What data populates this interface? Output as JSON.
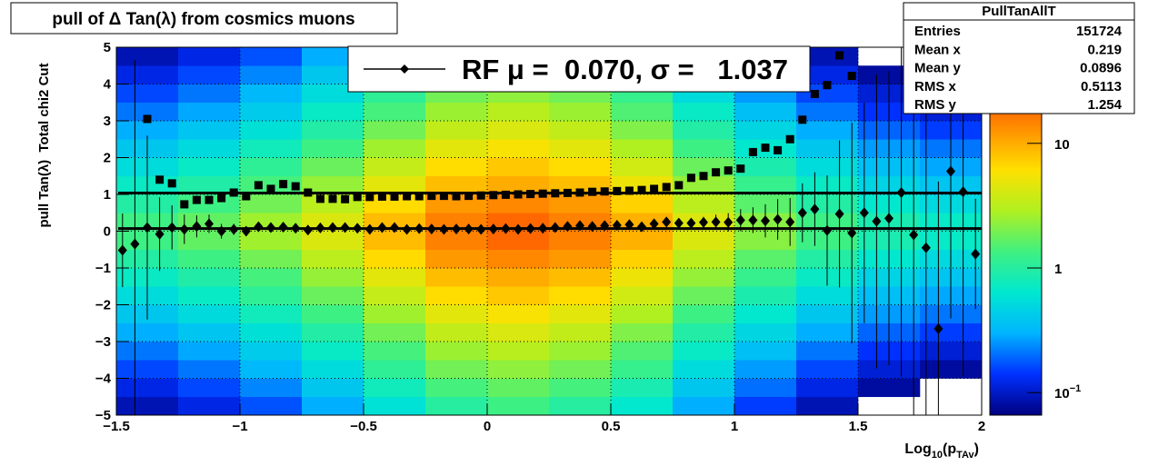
{
  "chart_data": {
    "type": "heatmap",
    "title": "pull of Δ Tan(λ) from cosmics muons",
    "xlabel": [
      "Log",
      "10",
      "(p",
      "TAv",
      ")"
    ],
    "ylabel": "pull Tan(λ)  Total chi2 Cut",
    "xlim": [
      -1.5,
      2
    ],
    "ylim": [
      -5,
      5
    ],
    "xticks": [
      {
        "value": -1.5,
        "label": "−1.5"
      },
      {
        "value": -1,
        "label": "−1"
      },
      {
        "value": -0.5,
        "label": "−0.5"
      },
      0,
      0.5,
      1,
      1.5,
      2
    ],
    "yticks": [
      {
        "value": -5,
        "label": "−5"
      },
      {
        "value": -4,
        "label": "−4"
      },
      {
        "value": -3,
        "label": "−3"
      },
      {
        "value": -2,
        "label": "−2"
      },
      {
        "value": -1,
        "label": "−1"
      },
      0,
      1,
      2,
      3,
      4,
      5
    ],
    "grid": true,
    "zlim": [
      0.066,
      59
    ],
    "zscale": "log",
    "zticks": [
      {
        "value": 0.1,
        "label": "10",
        "exponent": "−1"
      },
      1,
      10
    ],
    "palette": [
      "#000080",
      "#0030ff",
      "#00b4ff",
      "#00e8d0",
      "#40f080",
      "#b0f020",
      "#ffe000",
      "#ff9000",
      "#ff4000",
      "#c00000"
    ],
    "heatmap": {
      "xbins": [
        -1.5,
        -1.25,
        -1,
        -0.75,
        -0.5,
        -0.25,
        0,
        0.25,
        0.5,
        0.75,
        1,
        1.25,
        1.5,
        1.75,
        2
      ],
      "ybins": [
        -5,
        -4.5,
        -4,
        -3.5,
        -3,
        -2.5,
        -2,
        -1.5,
        -1,
        -0.5,
        0,
        0.5,
        1,
        1.5,
        2,
        2.5,
        3,
        3.5,
        4,
        4.5,
        5
      ],
      "z": [
        [
          0.09,
          0.12,
          0.17,
          0.29,
          0.58,
          1.0,
          1.3,
          1.0,
          0.64,
          0.29,
          0.15,
          0.09,
          0.06,
          0.05
        ],
        [
          0.12,
          0.16,
          0.23,
          0.39,
          0.78,
          1.4,
          1.7,
          1.4,
          0.86,
          0.39,
          0.2,
          0.12,
          0.08,
          0.06
        ],
        [
          0.16,
          0.21,
          0.32,
          0.53,
          1.1,
          1.9,
          2.3,
          1.9,
          1.2,
          0.53,
          0.26,
          0.16,
          0.11,
          0.08
        ],
        [
          0.21,
          0.28,
          0.42,
          0.7,
          1.4,
          2.5,
          3.1,
          2.5,
          1.5,
          0.7,
          0.35,
          0.21,
          0.14,
          0.11
        ],
        [
          0.29,
          0.38,
          0.57,
          0.95,
          1.9,
          3.4,
          4.2,
          3.4,
          2.1,
          0.95,
          0.48,
          0.29,
          0.19,
          0.15
        ],
        [
          0.39,
          0.52,
          0.78,
          1.3,
          2.6,
          4.7,
          5.7,
          4.7,
          2.9,
          1.3,
          0.65,
          0.39,
          0.26,
          0.21
        ],
        [
          0.53,
          0.7,
          1.1,
          1.8,
          3.5,
          6.3,
          7.7,
          6.3,
          3.9,
          1.8,
          0.88,
          0.53,
          0.35,
          0.28
        ],
        [
          0.71,
          0.94,
          1.4,
          2.4,
          4.7,
          8.5,
          10,
          8.5,
          5.2,
          2.4,
          1.2,
          0.71,
          0.47,
          0.38
        ],
        [
          0.96,
          1.3,
          1.9,
          3.2,
          6.4,
          12,
          14,
          12,
          7,
          3.2,
          1.6,
          0.96,
          0.64,
          0.51
        ],
        [
          1.3,
          1.7,
          2.6,
          4.3,
          8.6,
          15,
          19,
          15,
          9.5,
          4.3,
          2.2,
          1.3,
          0.86,
          0.69
        ],
        [
          1.3,
          1.7,
          2.6,
          4.3,
          8.6,
          15,
          19,
          15,
          9.5,
          4.3,
          2.2,
          1.3,
          0.86,
          0.69
        ],
        [
          0.96,
          1.3,
          1.9,
          3.2,
          6.4,
          12,
          14,
          12,
          7,
          3.2,
          1.6,
          0.96,
          0.64,
          0.51
        ],
        [
          0.71,
          0.94,
          1.4,
          2.4,
          4.7,
          8.5,
          10,
          8.5,
          5.2,
          2.4,
          1.2,
          0.71,
          0.47,
          0.38
        ],
        [
          0.53,
          0.7,
          1.1,
          1.8,
          3.5,
          6.3,
          7.7,
          6.3,
          3.9,
          1.8,
          0.88,
          0.53,
          0.35,
          0.28
        ],
        [
          0.39,
          0.52,
          0.78,
          1.3,
          2.6,
          4.7,
          5.7,
          4.7,
          2.9,
          1.3,
          0.65,
          0.39,
          0.26,
          0.21
        ],
        [
          0.29,
          0.38,
          0.57,
          0.95,
          1.9,
          3.4,
          4.2,
          3.4,
          2.1,
          0.95,
          0.48,
          0.29,
          0.19,
          0.15
        ],
        [
          0.21,
          0.28,
          0.42,
          0.7,
          1.4,
          2.5,
          3.1,
          2.5,
          1.5,
          0.7,
          0.35,
          0.21,
          0.14,
          0.11
        ],
        [
          0.16,
          0.21,
          0.32,
          0.53,
          1.1,
          1.9,
          2.3,
          1.9,
          1.2,
          0.53,
          0.26,
          0.16,
          0.11,
          0.08
        ],
        [
          0.12,
          0.16,
          0.23,
          0.39,
          0.78,
          1.4,
          1.7,
          1.4,
          0.86,
          0.39,
          0.2,
          0.12,
          0.08,
          0.06
        ],
        [
          0.09,
          0.12,
          0.17,
          0.29,
          0.58,
          1.0,
          1.3,
          1.0,
          0.64,
          0.29,
          0.15,
          0.09,
          0.06,
          0.05
        ]
      ]
    },
    "x": [
      -1.475,
      -1.425,
      -1.375,
      -1.325,
      -1.275,
      -1.225,
      -1.175,
      -1.125,
      -1.075,
      -1.025,
      -0.975,
      -0.925,
      -0.875,
      -0.825,
      -0.775,
      -0.725,
      -0.675,
      -0.625,
      -0.575,
      -0.525,
      -0.475,
      -0.425,
      -0.375,
      -0.325,
      -0.275,
      -0.225,
      -0.175,
      -0.125,
      -0.075,
      -0.025,
      0.025,
      0.075,
      0.125,
      0.175,
      0.225,
      0.275,
      0.325,
      0.375,
      0.425,
      0.475,
      0.525,
      0.575,
      0.625,
      0.675,
      0.725,
      0.775,
      0.825,
      0.875,
      0.925,
      0.975,
      1.025,
      1.075,
      1.125,
      1.175,
      1.225,
      1.275,
      1.325,
      1.375,
      1.425,
      1.475,
      1.525,
      1.575,
      1.625,
      1.675,
      1.725,
      1.775,
      1.825,
      1.875,
      1.925,
      1.975
    ],
    "series": [
      {
        "marker": "diamond",
        "color": "#000000",
        "values": [
          -0.52,
          -0.35,
          0.1,
          -0.08,
          0.1,
          0.05,
          0.13,
          0.2,
          0.0,
          0.05,
          0.0,
          0.12,
          0.1,
          0.11,
          0.08,
          0.03,
          0.09,
          0.1,
          0.1,
          0.08,
          0.05,
          0.1,
          0.1,
          0.05,
          0.07,
          0.06,
          0.05,
          0.06,
          0.06,
          0.05,
          0.06,
          0.07,
          0.05,
          0.07,
          0.08,
          0.1,
          0.13,
          0.15,
          0.13,
          0.15,
          0.16,
          0.18,
          0.12,
          0.2,
          0.25,
          0.22,
          0.22,
          0.24,
          0.25,
          0.24,
          0.3,
          0.3,
          0.28,
          0.32,
          0.25,
          0.5,
          0.6,
          0.02,
          0.47,
          -0.05,
          0.5,
          0.27,
          0.35,
          1.05,
          -0.1,
          -0.45,
          -2.65,
          1.63,
          1.07,
          -0.62
        ],
        "errors": [
          1.0,
          5,
          2.5,
          1.0,
          0.6,
          0.4,
          0.3,
          0.25,
          0.2,
          0.15,
          0.1,
          0.08,
          0.06,
          0.05,
          0.04,
          0.03,
          0.03,
          0.02,
          0.02,
          0.02,
          0.02,
          0.02,
          0.02,
          0.02,
          0.02,
          0.02,
          0.02,
          0.02,
          0.02,
          0.02,
          0.02,
          0.02,
          0.02,
          0.02,
          0.02,
          0.02,
          0.02,
          0.02,
          0.03,
          0.03,
          0.04,
          0.05,
          0.06,
          0.07,
          0.08,
          0.1,
          0.12,
          0.15,
          0.2,
          0.25,
          0.3,
          0.35,
          0.45,
          0.55,
          0.65,
          0.8,
          1.0,
          1.5,
          2.0,
          3,
          3,
          4,
          4,
          5,
          5,
          5,
          4,
          4,
          5,
          1.5
        ]
      },
      {
        "marker": "square",
        "color": "#000000",
        "values": [
          null,
          null,
          3.05,
          1.4,
          1.3,
          0.73,
          0.85,
          0.85,
          0.9,
          1.05,
          0.95,
          1.25,
          1.15,
          1.28,
          1.22,
          1.05,
          0.88,
          0.88,
          0.87,
          0.93,
          0.93,
          0.94,
          0.94,
          0.95,
          0.95,
          0.96,
          0.96,
          0.95,
          0.96,
          0.97,
          0.98,
          0.99,
          1.0,
          1.01,
          1.02,
          1.03,
          1.04,
          1.05,
          1.07,
          1.08,
          1.09,
          1.1,
          1.12,
          1.15,
          1.2,
          1.25,
          1.45,
          1.5,
          1.6,
          1.65,
          1.7,
          2.15,
          2.27,
          2.2,
          2.5,
          3.03,
          3.73,
          3.97,
          4.78,
          4.22,
          null,
          null,
          null,
          null,
          null,
          null,
          null,
          null,
          null,
          null
        ]
      }
    ],
    "fit_lines": [
      0.07,
      1.037
    ],
    "legend": {
      "label": "RF μ =  0.070, σ =   1.037",
      "position": "top-center"
    },
    "stats": {
      "title": "PullTanAllT",
      "rows": [
        [
          "Entries",
          151724
        ],
        [
          "Mean x",
          0.219
        ],
        [
          "Mean y",
          0.0896
        ],
        [
          "RMS x",
          0.5113
        ],
        [
          "RMS y",
          1.254
        ]
      ]
    }
  }
}
